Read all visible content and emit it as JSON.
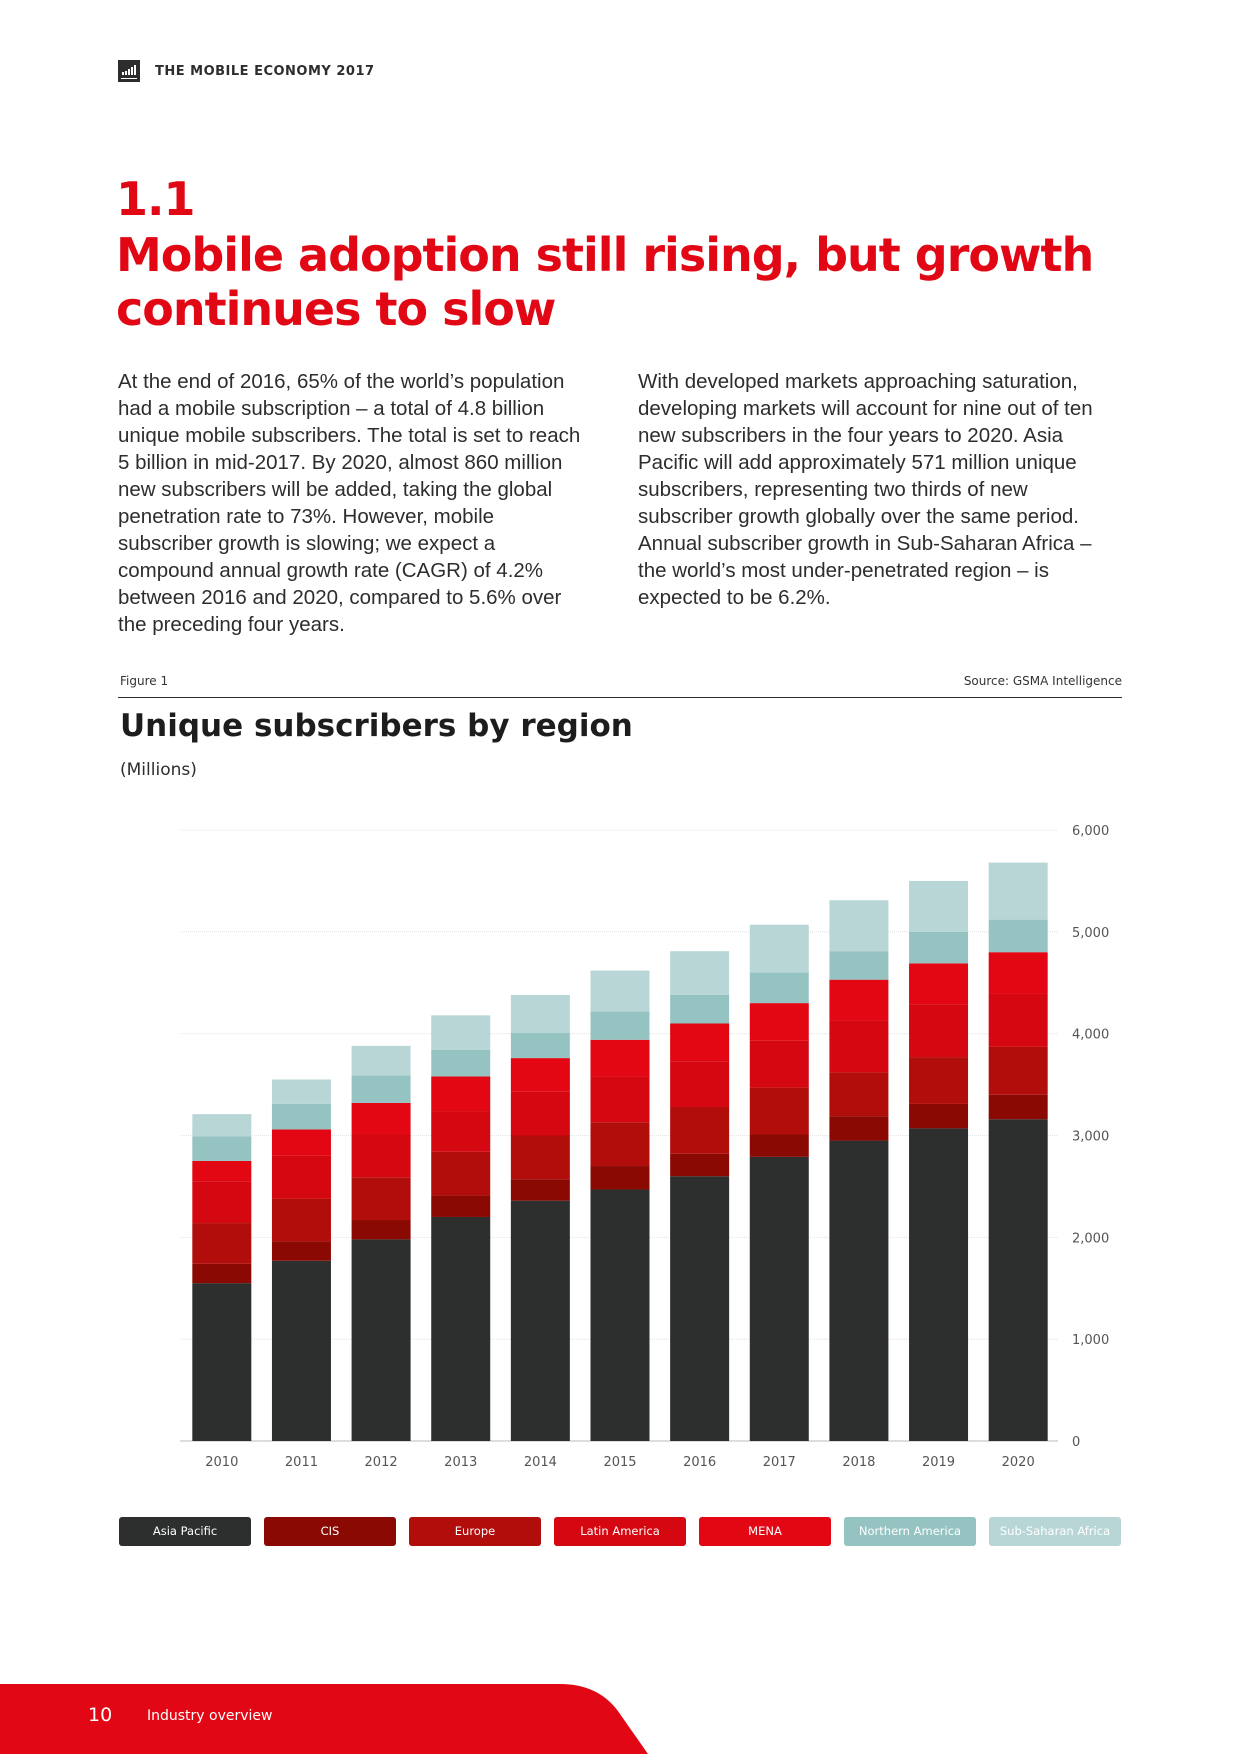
{
  "header": {
    "title": "THE MOBILE ECONOMY 2017"
  },
  "section": {
    "number": "1.1",
    "title": "Mobile adoption still rising, but growth continues to slow"
  },
  "body": {
    "col1": "At the end of 2016, 65% of the world’s population had a mobile subscription – a total of 4.8 billion unique mobile subscribers. The total is set to reach 5 billion in mid-2017. By 2020, almost 860 million new subscribers will be added, taking the global penetration rate to 73%. However, mobile subscriber growth is slowing; we expect a compound annual growth rate (CAGR) of 4.2% between 2016 and 2020, compared to 5.6% over the preceding four years.",
    "col2": "With developed markets approaching saturation, developing markets will account for nine out of ten new subscribers in the four years to 2020. Asia Pacific will add approximately 571 million unique subscribers, representing two thirds of new subscriber growth globally over the same period. Annual subscriber growth in Sub-Saharan Africa – the world’s most under-penetrated region – is expected to be 6.2%."
  },
  "figure": {
    "label": "Figure 1",
    "source": "Source: GSMA Intelligence"
  },
  "chart_data": {
    "type": "bar",
    "stacked": true,
    "title": "Unique subscribers by region",
    "subtitle": "(Millions)",
    "categories": [
      "2010",
      "2011",
      "2012",
      "2013",
      "2014",
      "2015",
      "2016",
      "2017",
      "2018",
      "2019",
      "2020"
    ],
    "ylim": [
      0,
      6000
    ],
    "yticks": [
      0,
      1000,
      2000,
      3000,
      4000,
      5000,
      6000
    ],
    "ytick_labels": [
      "0",
      "1,000",
      "2,000",
      "3,000",
      "4,000",
      "5,000",
      "6,000"
    ],
    "grid": true,
    "legend_position": "bottom",
    "series": [
      {
        "name": "Asia Pacific",
        "color": "#2d2e2e",
        "values": [
          1550,
          1770,
          1980,
          2200,
          2360,
          2470,
          2600,
          2790,
          2950,
          3070,
          3160
        ]
      },
      {
        "name": "CIS",
        "color": "#8a0a03",
        "values": [
          190,
          190,
          190,
          210,
          210,
          230,
          220,
          220,
          240,
          240,
          240
        ]
      },
      {
        "name": "Europe",
        "color": "#b00d0b",
        "values": [
          400,
          420,
          420,
          430,
          430,
          430,
          460,
          460,
          430,
          460,
          470
        ]
      },
      {
        "name": "Latin America",
        "color": "#d50711",
        "values": [
          410,
          420,
          420,
          400,
          430,
          450,
          450,
          460,
          510,
          520,
          520
        ]
      },
      {
        "name": "MENA",
        "color": "#e30613",
        "values": [
          200,
          260,
          310,
          340,
          330,
          360,
          370,
          370,
          400,
          400,
          410
        ]
      },
      {
        "name": "Northern America",
        "color": "#95c3c2",
        "values": [
          240,
          250,
          270,
          260,
          250,
          280,
          280,
          300,
          280,
          310,
          320
        ]
      },
      {
        "name": "Sub-Saharan Africa",
        "color": "#b9d6d6",
        "values": [
          220,
          240,
          290,
          340,
          370,
          400,
          430,
          470,
          500,
          500,
          560
        ]
      }
    ]
  },
  "footer": {
    "page_number": "10",
    "section": "Industry overview",
    "bar_color": "#e10714"
  }
}
